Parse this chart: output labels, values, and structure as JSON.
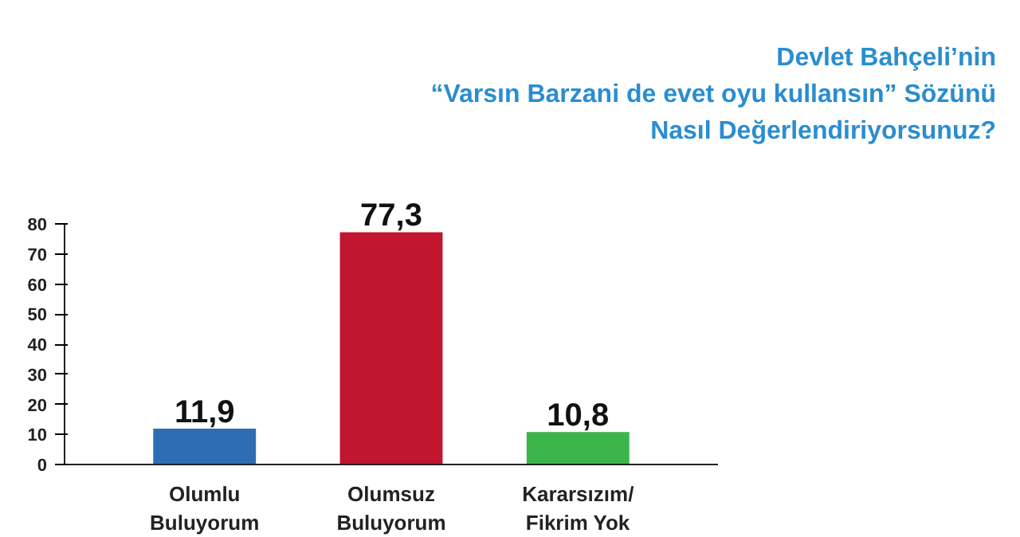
{
  "chart_data": {
    "type": "bar",
    "title": "Devlet Bahçeli’nin\n“Varsın Barzani de evet oyu kullansın” Sözünü\nNasıl Değerlendiriyorsunuz?",
    "categories": [
      "Olumlu\nBuluyorum",
      "Olumsuz\nBuluyorum",
      "Kararsızım/\nFikrim Yok"
    ],
    "values": [
      11.9,
      77.3,
      10.8
    ],
    "colors": [
      "#2f6db3",
      "#c0162f",
      "#3bb44a"
    ],
    "value_labels": [
      "11,9",
      "77,3",
      "10,8"
    ],
    "ylim": [
      0,
      80
    ],
    "yticks": [
      0,
      10,
      20,
      30,
      40,
      50,
      60,
      70,
      80
    ],
    "grid": false
  }
}
